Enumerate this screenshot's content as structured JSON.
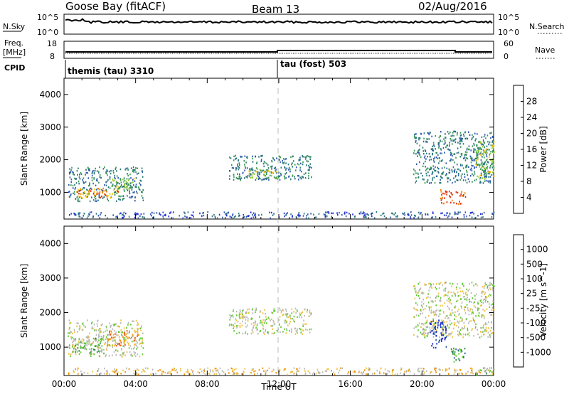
{
  "header": {
    "station": "Goose Bay (fitACF)",
    "beam": "Beam 13",
    "date": "02/Aug/2016"
  },
  "top_panels": {
    "nsky_label": "N.Sky",
    "nsky_ticks": [
      "10^5",
      "10^0"
    ],
    "nsearch_label": "N.Search",
    "nsearch_ticks": [
      "10^5",
      "10^0"
    ],
    "freq_label": "Freq.",
    "freq_unit": "[MHz]",
    "freq_ticks": [
      "18",
      "8"
    ],
    "nave_label": "Nave",
    "nave_ticks": [
      "60",
      "0"
    ],
    "cpid_label": "CPID",
    "cpid_segments": [
      {
        "start_hour": 0,
        "text": "themis (tau) 3310"
      },
      {
        "start_hour": 12,
        "text": "tau (fost) 503"
      }
    ]
  },
  "colors": {
    "power": [
      "#1f28d8",
      "#2f58b0",
      "#2a7a78",
      "#3a9a50",
      "#8ccc2a",
      "#f0c000",
      "#f08a00",
      "#e02a00"
    ],
    "velocity": [
      "#e00000",
      "#f05000",
      "#f09000",
      "#f0c040",
      "#b8b8b8",
      "#60c830",
      "#2a8a40",
      "#2a5aa8",
      "#1828c8"
    ]
  },
  "chart_data": [
    {
      "type": "heatmap",
      "name": "power",
      "xlabel": "",
      "ylabel": "Slant Range [km]",
      "xlim": [
        0,
        24
      ],
      "ylim": [
        180,
        4500
      ],
      "y_ticks": [
        1000,
        2000,
        3000,
        4000
      ],
      "colorbar_label": "Power [dB]",
      "colorbar_ticks": [
        "4",
        "8",
        "12",
        "16",
        "20",
        "24",
        "28"
      ],
      "regions": [
        {
          "x0": 0.2,
          "x1": 4.4,
          "y0": 750,
          "y1": 1800,
          "level": 2
        },
        {
          "x0": 0.6,
          "x1": 3.0,
          "y0": 850,
          "y1": 1150,
          "level": 6
        },
        {
          "x0": 2.6,
          "x1": 4.2,
          "y0": 1050,
          "y1": 1450,
          "level": 4
        },
        {
          "x0": 0.2,
          "x1": 24.0,
          "y0": 230,
          "y1": 420,
          "level": 1
        },
        {
          "x0": 9.2,
          "x1": 13.8,
          "y0": 1400,
          "y1": 2150,
          "level": 2
        },
        {
          "x0": 10.2,
          "x1": 12.0,
          "y0": 1450,
          "y1": 1750,
          "level": 4
        },
        {
          "x0": 19.5,
          "x1": 24.0,
          "y0": 1300,
          "y1": 2900,
          "level": 2
        },
        {
          "x0": 21.0,
          "x1": 22.4,
          "y0": 650,
          "y1": 1100,
          "level": 7
        },
        {
          "x0": 23.0,
          "x1": 24.0,
          "y0": 1400,
          "y1": 2600,
          "level": 4
        }
      ]
    },
    {
      "type": "heatmap",
      "name": "velocity",
      "xlabel": "Time UT",
      "ylabel": "Slant Range [km]",
      "xlim": [
        0,
        24
      ],
      "ylim": [
        180,
        4500
      ],
      "x_ticks": [
        "00:00",
        "04:00",
        "08:00",
        "12:00",
        "16:00",
        "20:00",
        "00:00"
      ],
      "y_ticks": [
        1000,
        2000,
        3000,
        4000
      ],
      "colorbar_label": "Velocity [m s^-1]",
      "colorbar_ticks": [
        "-1000",
        "-500",
        "-100",
        "-25",
        "25",
        "100",
        "500",
        "1000"
      ],
      "regions": [
        {
          "x0": 0.2,
          "x1": 4.4,
          "y0": 750,
          "y1": 1800,
          "level": 4
        },
        {
          "x0": 0.4,
          "x1": 2.2,
          "y0": 850,
          "y1": 1300,
          "level": 5
        },
        {
          "x0": 2.4,
          "x1": 4.2,
          "y0": 1050,
          "y1": 1500,
          "level": 2
        },
        {
          "x0": 0.2,
          "x1": 24.0,
          "y0": 230,
          "y1": 420,
          "level": 3
        },
        {
          "x0": 9.2,
          "x1": 13.8,
          "y0": 1400,
          "y1": 2150,
          "level": 4
        },
        {
          "x0": 19.5,
          "x1": 24.0,
          "y0": 1300,
          "y1": 2900,
          "level": 4
        },
        {
          "x0": 20.4,
          "x1": 21.4,
          "y0": 1000,
          "y1": 1800,
          "level": 8
        },
        {
          "x0": 21.6,
          "x1": 22.4,
          "y0": 600,
          "y1": 1000,
          "level": 6
        },
        {
          "x0": 23.0,
          "x1": 24.0,
          "y0": 200,
          "y1": 450,
          "level": 5
        }
      ]
    }
  ]
}
